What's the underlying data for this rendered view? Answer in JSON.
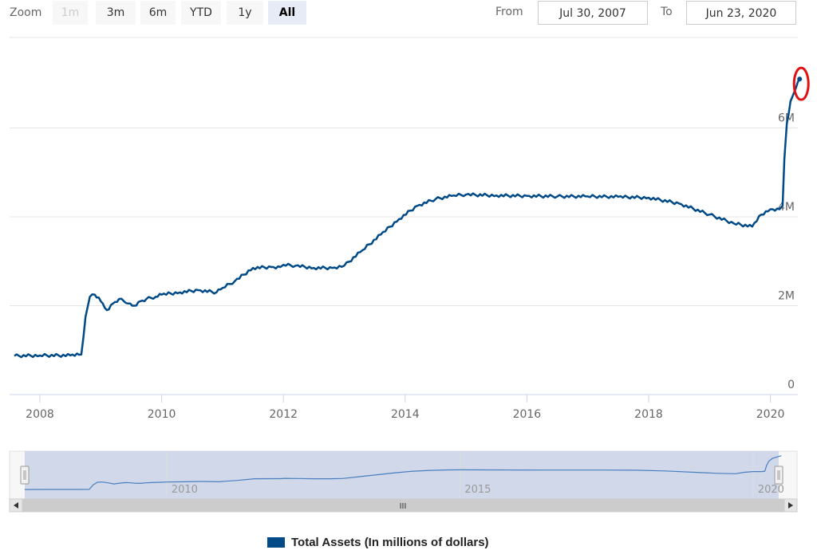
{
  "toolbar": {
    "zoom_label": "Zoom",
    "buttons": [
      "1m",
      "3m",
      "6m",
      "YTD",
      "1y",
      "All"
    ],
    "disabled_button": "1m",
    "active_button": "All",
    "from_label": "From",
    "from_value": "Jul 30, 2007",
    "to_label": "To",
    "to_value": "Jun 23, 2020"
  },
  "chart_data": {
    "type": "line",
    "title": "",
    "xlabel": "",
    "ylabel": "",
    "ylim": [
      0,
      7500000
    ],
    "y_ticks": [
      0,
      2000000,
      4000000,
      6000000
    ],
    "y_tick_labels": [
      "0",
      "2M",
      "4M",
      "6M"
    ],
    "x_ticks": [
      2008,
      2010,
      2012,
      2014,
      2016,
      2018,
      2020
    ],
    "x_tick_labels": [
      "2008",
      "2010",
      "2012",
      "2014",
      "2016",
      "2018",
      "2020"
    ],
    "grid": "horizontal",
    "series": [
      {
        "name": "Total Assets (In millions of dollars)",
        "color": "#004a87",
        "x": [
          2007.58,
          2008.0,
          2008.5,
          2008.68,
          2008.75,
          2008.82,
          2008.9,
          2009.0,
          2009.1,
          2009.2,
          2009.3,
          2009.38,
          2009.45,
          2009.55,
          2009.65,
          2009.75,
          2009.9,
          2010.0,
          2010.3,
          2010.6,
          2010.9,
          2011.0,
          2011.2,
          2011.5,
          2011.8,
          2011.95,
          2012.0,
          2012.2,
          2012.5,
          2012.8,
          2013.0,
          2013.3,
          2013.6,
          2013.9,
          2014.2,
          2014.5,
          2014.8,
          2015.0,
          2015.5,
          2016.0,
          2016.5,
          2017.0,
          2017.5,
          2018.0,
          2018.5,
          2019.0,
          2019.4,
          2019.7,
          2019.85,
          2020.0,
          2020.15,
          2020.2,
          2020.23,
          2020.27,
          2020.33,
          2020.42,
          2020.48
        ],
        "y": [
          870000,
          880000,
          880000,
          900000,
          1750000,
          2200000,
          2250000,
          2100000,
          1900000,
          2050000,
          2150000,
          2100000,
          2050000,
          2000000,
          2100000,
          2150000,
          2200000,
          2250000,
          2300000,
          2350000,
          2300000,
          2400000,
          2550000,
          2850000,
          2870000,
          2870000,
          2920000,
          2900000,
          2850000,
          2850000,
          2900000,
          3250000,
          3600000,
          3950000,
          4250000,
          4400000,
          4480000,
          4500000,
          4480000,
          4470000,
          4460000,
          4460000,
          4450000,
          4430000,
          4300000,
          4050000,
          3850000,
          3780000,
          4050000,
          4170000,
          4170000,
          4250000,
          5300000,
          6100000,
          6600000,
          6900000,
          7100000
        ]
      }
    ],
    "annotation": "red circle marking latest value",
    "navigator": {
      "x_tick_labels": [
        "2010",
        "2015",
        "2020"
      ],
      "x_ticks": [
        2010,
        2015,
        2020
      ]
    },
    "scrollbar_grip": "III",
    "legend_position": "bottom-center"
  }
}
